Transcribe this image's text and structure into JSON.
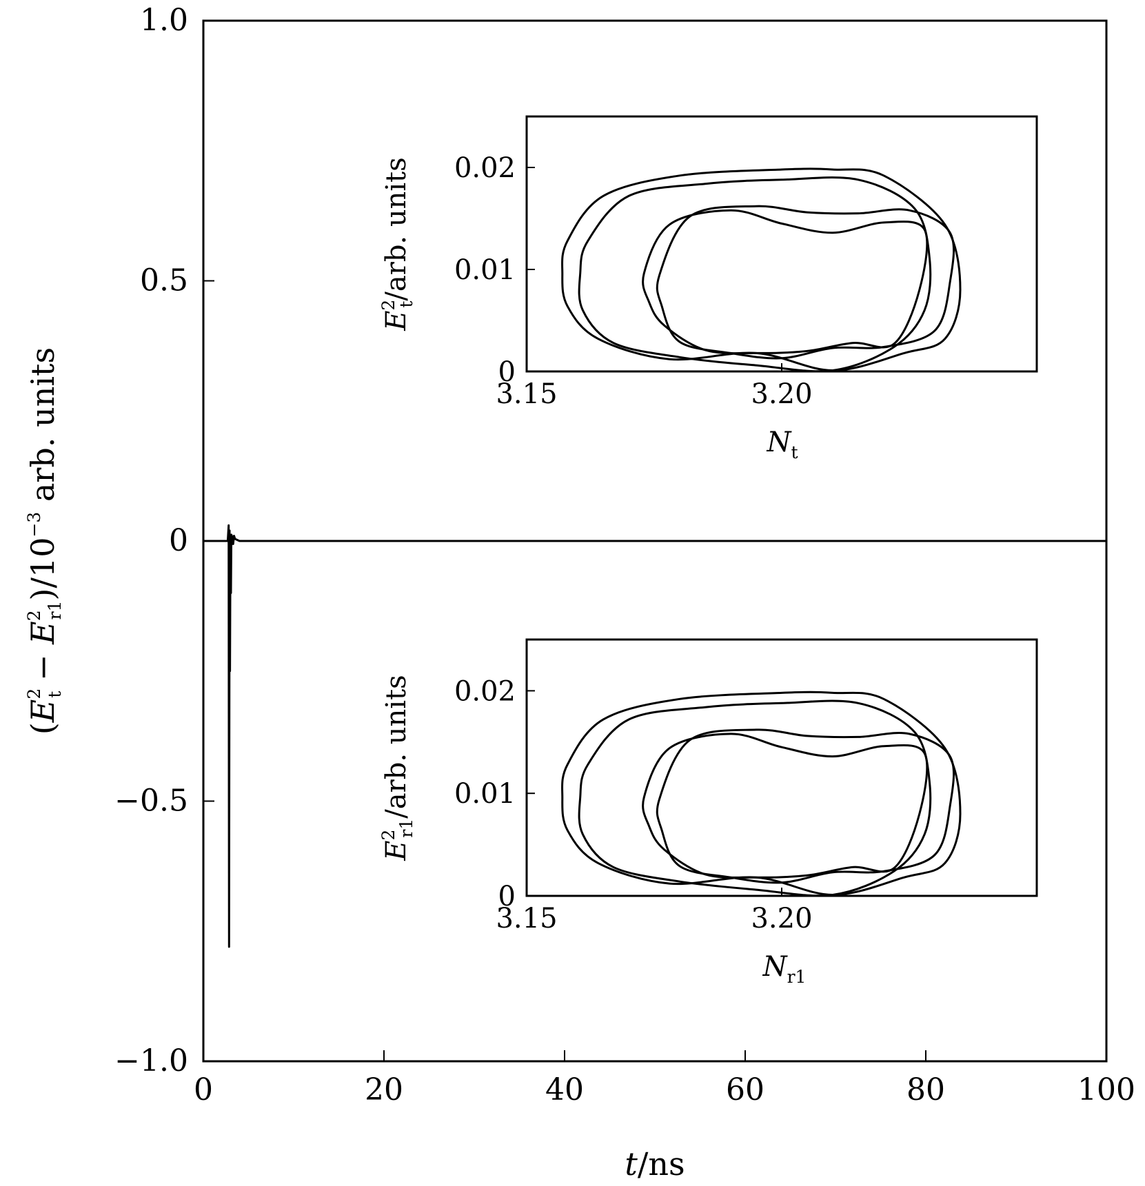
{
  "chart_data": [
    {
      "id": "main",
      "type": "line",
      "xlabel": "t/ns",
      "ylabel": "(E_t^2 − E_r1^2)/10^−3 arb. units",
      "xlim": [
        0,
        100
      ],
      "ylim": [
        -1.0,
        1.0
      ],
      "xticks": [
        "0",
        "20",
        "40",
        "60",
        "80",
        "100"
      ],
      "yticks": [
        "1.0",
        "0.5",
        "0",
        "−0.5",
        "−1.0"
      ],
      "series": [
        {
          "x": [
            0,
            2.7,
            2.8,
            2.85,
            2.9,
            2.95,
            3.0,
            3.05,
            3.1,
            3.2,
            3.3,
            3.4,
            3.5,
            4.0,
            10,
            30,
            50,
            70,
            90,
            100
          ],
          "y": [
            0,
            0,
            0.03,
            -0.78,
            0.02,
            -0.25,
            0.01,
            -0.1,
            0.012,
            0.008,
            -0.006,
            0.01,
            0.004,
            0.0,
            0,
            0,
            0,
            0,
            0,
            0
          ]
        }
      ]
    },
    {
      "id": "inset-top",
      "type": "line",
      "xlabel": "N_t",
      "ylabel": "E_t^2/arb. units",
      "xlim": [
        3.15,
        3.25
      ],
      "ylim": [
        0,
        0.025
      ],
      "xticks": [
        "3.15",
        "3.20"
      ],
      "yticks": [
        "0.02",
        "0.01",
        "0"
      ],
      "series": [
        {
          "name": "",
          "closed": true,
          "x": [
            3.157,
            3.158,
            3.165,
            3.18,
            3.2,
            3.21,
            3.22,
            3.232,
            3.235,
            3.232,
            3.224,
            3.21,
            3.195,
            3.178,
            3.164,
            3.158
          ],
          "y": [
            0.0096,
            0.0128,
            0.0172,
            0.0192,
            0.0198,
            0.0198,
            0.0192,
            0.0144,
            0.008,
            0.0032,
            0.0018,
            0.0001,
            0.0018,
            0.0012,
            0.0032,
            0.0064
          ]
        },
        {
          "closed": true,
          "x": [
            3.1605,
            3.162,
            3.17,
            3.185,
            3.2,
            3.215,
            3.226,
            3.229,
            3.228,
            3.222,
            3.21,
            3.195,
            3.18,
            3.167,
            3.161
          ],
          "y": [
            0.0096,
            0.0128,
            0.0172,
            0.0184,
            0.0188,
            0.0188,
            0.016,
            0.011,
            0.006,
            0.0024,
            0.0001,
            0.0006,
            0.0014,
            0.0028,
            0.006
          ]
        },
        {
          "closed": true,
          "x": [
            3.173,
            3.178,
            3.19,
            3.2,
            3.21,
            3.22,
            3.228,
            3.227,
            3.222,
            3.214,
            3.205,
            3.195,
            3.185,
            3.177,
            3.174
          ],
          "y": [
            0.0096,
            0.0144,
            0.0158,
            0.0145,
            0.0136,
            0.0146,
            0.0139,
            0.008,
            0.0027,
            0.0028,
            0.002,
            0.0018,
            0.0021,
            0.0045,
            0.0068
          ]
        },
        {
          "closed": true,
          "x": [
            3.176,
            3.182,
            3.195,
            3.205,
            3.215,
            3.225,
            3.233,
            3.233,
            3.23,
            3.22,
            3.21,
            3.2,
            3.19,
            3.18,
            3.1765
          ],
          "y": [
            0.0094,
            0.0152,
            0.0162,
            0.0156,
            0.0155,
            0.0158,
            0.0136,
            0.0088,
            0.004,
            0.0024,
            0.0023,
            0.0013,
            0.0018,
            0.0029,
            0.0064
          ]
        }
      ]
    },
    {
      "id": "inset-bottom",
      "type": "line",
      "xlabel": "N_r1",
      "ylabel": "E_r1^2/arb. units",
      "xlim": [
        3.15,
        3.25
      ],
      "ylim": [
        0,
        0.025
      ],
      "xticks": [
        "3.15",
        "3.20"
      ],
      "yticks": [
        "0.02",
        "0.01",
        "0"
      ],
      "series": [
        {
          "closed": true,
          "x": [
            3.157,
            3.158,
            3.165,
            3.18,
            3.2,
            3.21,
            3.22,
            3.232,
            3.235,
            3.232,
            3.224,
            3.21,
            3.195,
            3.178,
            3.164,
            3.158
          ],
          "y": [
            0.0096,
            0.0128,
            0.0172,
            0.0192,
            0.0198,
            0.0198,
            0.0192,
            0.0144,
            0.008,
            0.0032,
            0.0018,
            0.0001,
            0.0018,
            0.0012,
            0.0032,
            0.0064
          ]
        },
        {
          "closed": true,
          "x": [
            3.1605,
            3.162,
            3.17,
            3.185,
            3.2,
            3.215,
            3.226,
            3.229,
            3.228,
            3.222,
            3.21,
            3.195,
            3.18,
            3.167,
            3.161
          ],
          "y": [
            0.0096,
            0.0128,
            0.0172,
            0.0184,
            0.0188,
            0.0188,
            0.016,
            0.011,
            0.006,
            0.0024,
            0.0001,
            0.0006,
            0.0014,
            0.0028,
            0.006
          ]
        },
        {
          "closed": true,
          "x": [
            3.173,
            3.178,
            3.19,
            3.2,
            3.21,
            3.22,
            3.228,
            3.227,
            3.222,
            3.214,
            3.205,
            3.195,
            3.185,
            3.177,
            3.174
          ],
          "y": [
            0.0096,
            0.0144,
            0.0158,
            0.0145,
            0.0136,
            0.0146,
            0.0139,
            0.008,
            0.0027,
            0.0028,
            0.002,
            0.0018,
            0.0021,
            0.0045,
            0.0068
          ]
        },
        {
          "closed": true,
          "x": [
            3.176,
            3.182,
            3.195,
            3.205,
            3.215,
            3.225,
            3.233,
            3.233,
            3.23,
            3.22,
            3.21,
            3.2,
            3.19,
            3.18,
            3.1765
          ],
          "y": [
            0.0094,
            0.0152,
            0.0162,
            0.0156,
            0.0155,
            0.0158,
            0.0136,
            0.0088,
            0.004,
            0.0024,
            0.0023,
            0.0013,
            0.0018,
            0.0029,
            0.0064
          ]
        }
      ]
    }
  ]
}
